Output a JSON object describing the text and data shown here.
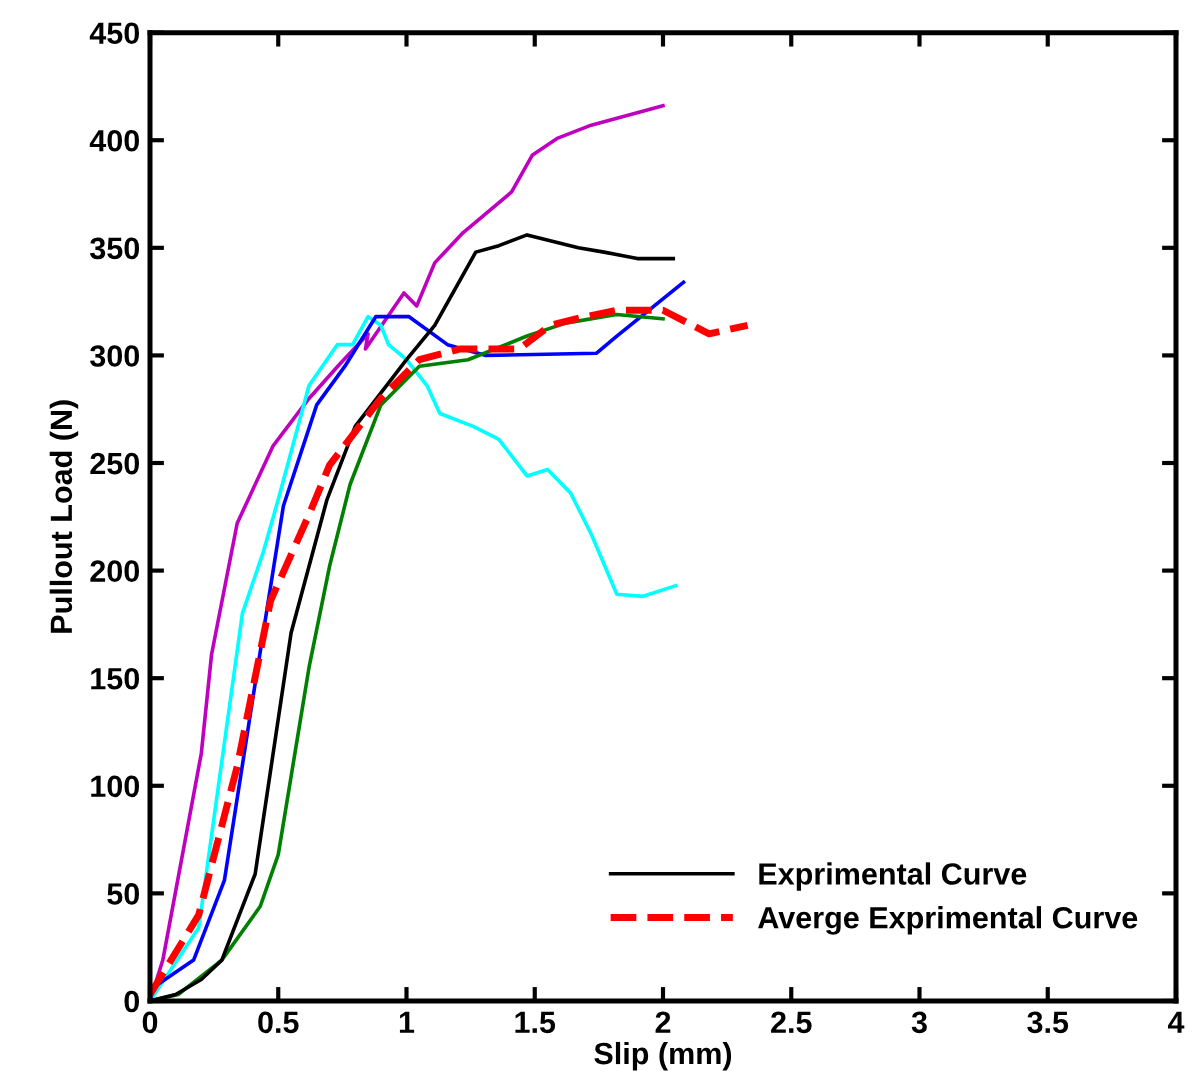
{
  "chart_data": {
    "type": "line",
    "xlabel": "Slip (mm)",
    "ylabel": "Pullout Load (N)",
    "xlim": [
      0,
      4
    ],
    "ylim": [
      0,
      450
    ],
    "xticks": [
      0,
      0.5,
      1,
      1.5,
      2,
      2.5,
      3,
      3.5,
      4
    ],
    "yticks": [
      0,
      50,
      100,
      150,
      200,
      250,
      300,
      350,
      400,
      450
    ],
    "grid": false,
    "legend": "bottom right",
    "line_style": "solid",
    "marker": "none",
    "series": [
      {
        "color": "#bf00bf",
        "x": [
          0,
          0.05,
          0.2,
          0.24,
          0.34,
          0.48,
          0.62,
          0.74,
          0.85,
          0.84,
          0.99,
          1.04,
          1.11,
          1.22,
          1.41,
          1.49,
          1.59,
          1.72,
          2.0
        ],
        "values": [
          0,
          19,
          115,
          161,
          222,
          258,
          280,
          296,
          310,
          303,
          329,
          323,
          343,
          357,
          376,
          393,
          401,
          407,
          416
        ]
      },
      {
        "color": "#00ffff",
        "x": [
          0,
          0.19,
          0.36,
          0.44,
          0.5,
          0.62,
          0.73,
          0.79,
          0.85,
          0.9,
          0.93,
          1.0,
          1.08,
          1.13,
          1.26,
          1.36,
          1.47,
          1.55,
          1.64,
          1.72,
          1.82,
          1.92,
          2.05
        ],
        "values": [
          0,
          34,
          180,
          208,
          233,
          286,
          305,
          305,
          318,
          314,
          305,
          298,
          286,
          273,
          267,
          261,
          244,
          247,
          236,
          217,
          189,
          188,
          193
        ]
      },
      {
        "color": "#0000ff",
        "x": [
          0,
          0.01,
          0.17,
          0.29,
          0.4,
          0.52,
          0.65,
          0.76,
          0.88,
          1.01,
          1.16,
          1.31,
          1.74,
          1.82,
          2.08
        ],
        "values": [
          0,
          6,
          19,
          56,
          140,
          230,
          277,
          295,
          318,
          318,
          305,
          300,
          301,
          309,
          334
        ]
      },
      {
        "color": "#008000",
        "x": [
          0,
          0.11,
          0.28,
          0.43,
          0.5,
          0.62,
          0.7,
          0.78,
          0.9,
          1.05,
          1.24,
          1.47,
          1.62,
          1.82,
          2.0
        ],
        "values": [
          0,
          3,
          19,
          44,
          68,
          155,
          202,
          240,
          277,
          295,
          298,
          309,
          315,
          319,
          317
        ]
      },
      {
        "name": "Exprimental Curve",
        "color": "#000000",
        "x": [
          0,
          0.1,
          0.2,
          0.28,
          0.41,
          0.55,
          0.69,
          0.8,
          1.0,
          1.11,
          1.27,
          1.36,
          1.47,
          1.67,
          1.77,
          1.9,
          2.04
        ],
        "values": [
          0,
          3,
          10,
          19,
          59,
          171,
          233,
          267,
          298,
          314,
          348,
          351,
          356,
          350,
          348,
          345,
          345
        ]
      },
      {
        "name": "Averge Exprimental Curve",
        "color": "#ff0000",
        "line_style": "dashed",
        "x": [
          0,
          0.19,
          0.34,
          0.47,
          0.62,
          0.7,
          0.9,
          1.05,
          1.21,
          1.44,
          1.56,
          1.66,
          1.82,
          2.0,
          2.18,
          2.33
        ],
        "values": [
          3,
          40,
          109,
          186,
          226,
          249,
          280,
          298,
          303,
          303,
          314,
          317,
          321,
          321,
          310,
          314
        ]
      }
    ]
  }
}
